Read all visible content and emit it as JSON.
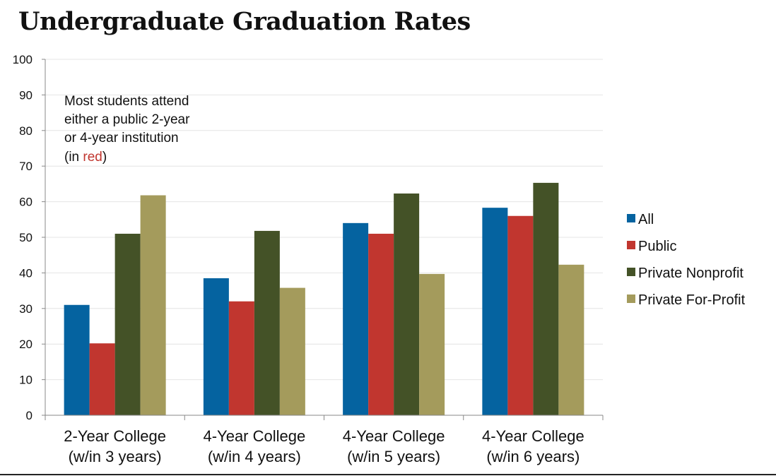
{
  "chart_data": {
    "type": "bar",
    "title": "Undergraduate Graduation Rates",
    "categories": [
      [
        "2-Year College",
        "(w/in 3 years)"
      ],
      [
        "4-Year College",
        "(w/in 4 years)"
      ],
      [
        "4-Year College",
        "(w/in 5 years)"
      ],
      [
        "4-Year College",
        "(w/in 6 years)"
      ]
    ],
    "series": [
      {
        "name": "All",
        "color": "#0563A0",
        "values": [
          31,
          38.5,
          54,
          58.3
        ]
      },
      {
        "name": "Public",
        "color": "#C1362F",
        "values": [
          20.2,
          32,
          51,
          56
        ]
      },
      {
        "name": "Private Nonprofit",
        "color": "#445227",
        "values": [
          51,
          51.8,
          62.3,
          65.3
        ]
      },
      {
        "name": "Private For-Profit",
        "color": "#A49B5C",
        "values": [
          61.8,
          35.8,
          39.7,
          42.3
        ]
      }
    ],
    "ylim": [
      0,
      100
    ],
    "yticks": [
      0,
      10,
      20,
      30,
      40,
      50,
      60,
      70,
      80,
      90,
      100
    ],
    "grid": true,
    "legend_position": "right",
    "xlabel": "",
    "ylabel": "",
    "annotation": {
      "lines": [
        "Most students attend",
        "either a public 2-year",
        "or 4-year institution"
      ],
      "last_line_prefix": "(in ",
      "highlight": "red",
      "highlight_color": "#C1362F",
      "last_line_suffix": ")"
    }
  }
}
